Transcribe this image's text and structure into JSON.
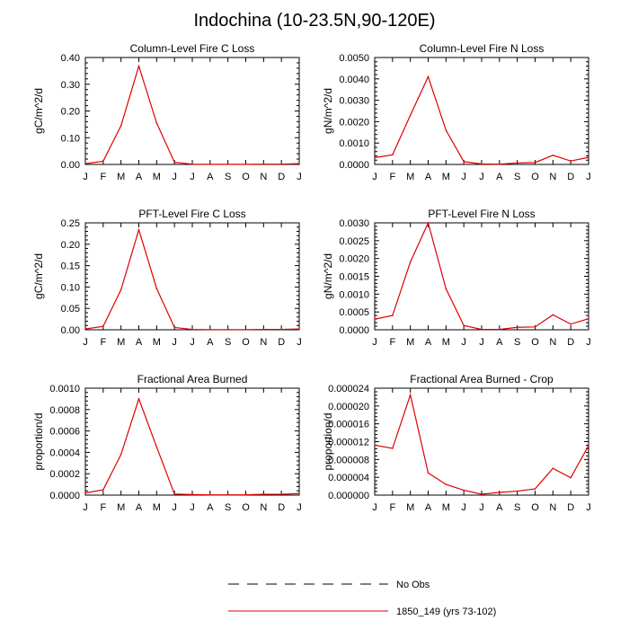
{
  "title": "Indochina (10-23.5N,90-120E)",
  "months": [
    "J",
    "F",
    "M",
    "A",
    "M",
    "J",
    "J",
    "A",
    "S",
    "O",
    "N",
    "D",
    "J"
  ],
  "legend": {
    "items": [
      {
        "label": "No Obs",
        "color": "#000000",
        "dash": true
      },
      {
        "label": "1850_149 (yrs 73-102)",
        "color": "#e00000",
        "dash": false
      }
    ]
  },
  "chart_data": [
    {
      "type": "line",
      "title": "Column-Level Fire C Loss",
      "ylabel": "gC/m^2/d",
      "ylim": [
        0,
        0.4
      ],
      "yticks": [
        "0.00",
        "0.10",
        "0.20",
        "0.30",
        "0.40"
      ],
      "x": [
        "J",
        "F",
        "M",
        "A",
        "M",
        "J",
        "J",
        "A",
        "S",
        "O",
        "N",
        "D",
        "J"
      ],
      "series": [
        {
          "name": "1850_149 (yrs 73-102)",
          "color": "#e00000",
          "values": [
            0.003,
            0.012,
            0.145,
            0.368,
            0.155,
            0.008,
            0.001,
            0.0005,
            0.0005,
            0.0005,
            0.001,
            0.001,
            0.003
          ]
        }
      ]
    },
    {
      "type": "line",
      "title": "Column-Level Fire N Loss",
      "ylabel": "gN/m^2/d",
      "ylim": [
        0,
        0.005
      ],
      "yticks": [
        "0.0000",
        "0.0010",
        "0.0020",
        "0.0030",
        "0.0040",
        "0.0050"
      ],
      "x": [
        "J",
        "F",
        "M",
        "A",
        "M",
        "J",
        "J",
        "A",
        "S",
        "O",
        "N",
        "D",
        "J"
      ],
      "series": [
        {
          "name": "1850_149 (yrs 73-102)",
          "color": "#e00000",
          "values": [
            0.00032,
            0.00045,
            0.0023,
            0.0041,
            0.0016,
            0.00013,
            2e-05,
            1e-05,
            7e-05,
            9e-05,
            0.00043,
            0.00016,
            0.00033
          ]
        }
      ]
    },
    {
      "type": "line",
      "title": "PFT-Level Fire C Loss",
      "ylabel": "gC/m^2/d",
      "ylim": [
        0,
        0.28
      ],
      "yticks": [
        "0.00",
        "0.05",
        "0.10",
        "0.15",
        "0.20",
        "0.25"
      ],
      "x": [
        "J",
        "F",
        "M",
        "A",
        "M",
        "J",
        "J",
        "A",
        "S",
        "O",
        "N",
        "D",
        "J"
      ],
      "series": [
        {
          "name": "1850_149 (yrs 73-102)",
          "color": "#e00000",
          "values": [
            0.002,
            0.009,
            0.105,
            0.262,
            0.108,
            0.006,
            0.001,
            0.0005,
            0.0005,
            0.0005,
            0.001,
            0.001,
            0.002
          ]
        }
      ]
    },
    {
      "type": "line",
      "title": "PFT-Level Fire N Loss",
      "ylabel": "gN/m^2/d",
      "ylim": [
        0,
        0.003
      ],
      "yticks": [
        "0.0000",
        "0.0005",
        "0.0010",
        "0.0015",
        "0.0020",
        "0.0025",
        "0.0030"
      ],
      "x": [
        "J",
        "F",
        "M",
        "A",
        "M",
        "J",
        "J",
        "A",
        "S",
        "O",
        "N",
        "D",
        "J"
      ],
      "series": [
        {
          "name": "1850_149 (yrs 73-102)",
          "color": "#e00000",
          "values": [
            0.0003,
            0.0004,
            0.0019,
            0.003,
            0.00115,
            0.00012,
            1e-05,
            1e-05,
            7e-05,
            8e-05,
            0.00042,
            0.00016,
            0.00031
          ]
        }
      ]
    },
    {
      "type": "line",
      "title": "Fractional Area Burned",
      "ylabel": "proportion/d",
      "ylim": [
        0,
        0.001
      ],
      "yticks": [
        "0.0000",
        "0.0002",
        "0.0004",
        "0.0006",
        "0.0008",
        "0.0010"
      ],
      "x": [
        "J",
        "F",
        "M",
        "A",
        "M",
        "J",
        "J",
        "A",
        "S",
        "O",
        "N",
        "D",
        "J"
      ],
      "series": [
        {
          "name": "1850_149 (yrs 73-102)",
          "color": "#e00000",
          "values": [
            2e-05,
            5e-05,
            0.00038,
            0.0009,
            0.00045,
            1e-05,
            5e-06,
            2e-06,
            2e-06,
            3e-06,
            8e-06,
            8e-06,
            1.5e-05
          ]
        }
      ]
    },
    {
      "type": "line",
      "title": "Fractional Area Burned - Crop",
      "ylabel": "proportion/d",
      "ylim": [
        0,
        2.4e-05
      ],
      "yticks": [
        "0.000000",
        "0.000004",
        "0.000008",
        "0.000012",
        "0.000016",
        "0.000020",
        "0.000024"
      ],
      "x": [
        "J",
        "F",
        "M",
        "A",
        "M",
        "J",
        "J",
        "A",
        "S",
        "O",
        "N",
        "D",
        "J"
      ],
      "series": [
        {
          "name": "1850_149 (yrs 73-102)",
          "color": "#e00000",
          "values": [
            1.12e-05,
            1.05e-05,
            2.25e-05,
            5e-06,
            2.4e-06,
            1.1e-06,
            2e-07,
            6e-07,
            9e-07,
            1.4e-06,
            6e-06,
            3.9e-06,
            1.11e-05
          ]
        }
      ]
    }
  ]
}
